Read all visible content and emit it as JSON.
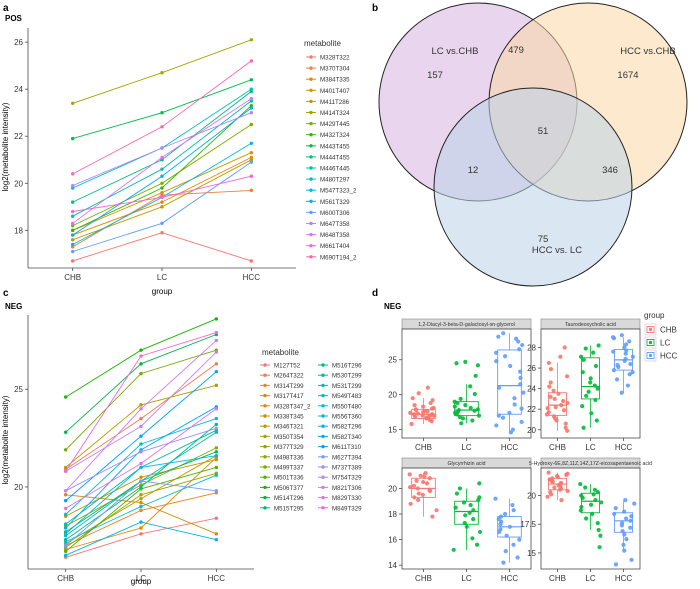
{
  "panels": {
    "a": {
      "label": "a",
      "title": "POS",
      "ylabel": "log2(metabolite intensity)",
      "xlabel": "group",
      "legend_title": "metabolite"
    },
    "b": {
      "label": "b"
    },
    "c": {
      "label": "c",
      "title": "NEG",
      "ylabel": "log2(metabolite intensity)",
      "xlabel": "group",
      "legend_title": "metabolite"
    },
    "d": {
      "label": "d",
      "title": "NEG",
      "legend_title": "group"
    }
  },
  "chart_data": [
    {
      "id": "pos_lines",
      "type": "line",
      "title": "POS",
      "xlabel": "group",
      "ylabel": "log2(metabolite intensity)",
      "categories": [
        "CHB",
        "LC",
        "HCC"
      ],
      "ylim": [
        16.4,
        26.6
      ],
      "yticks": [
        18,
        20,
        22,
        24,
        26
      ],
      "series": [
        {
          "name": "M328T322",
          "color": "#F8766D",
          "values": [
            16.7,
            17.9,
            16.7
          ]
        },
        {
          "name": "M370T304",
          "color": "#F07E41",
          "values": [
            17.3,
            19.5,
            19.7
          ]
        },
        {
          "name": "M384T335",
          "color": "#E48800",
          "values": [
            17.8,
            19.2,
            21.1
          ]
        },
        {
          "name": "M401T407",
          "color": "#D39200",
          "values": [
            18.0,
            19.6,
            21.3
          ]
        },
        {
          "name": "M411T286",
          "color": "#BE9C00",
          "values": [
            17.6,
            19.0,
            21.0
          ]
        },
        {
          "name": "M414T324",
          "color": "#A3A500",
          "values": [
            23.4,
            24.7,
            26.1
          ]
        },
        {
          "name": "M429T445",
          "color": "#7CAE00",
          "values": [
            18.2,
            20.0,
            22.5
          ]
        },
        {
          "name": "M432T324",
          "color": "#39B600",
          "values": [
            18.0,
            19.8,
            23.3
          ]
        },
        {
          "name": "M443T455",
          "color": "#00BB4E",
          "values": [
            21.9,
            23.0,
            24.4
          ]
        },
        {
          "name": "M444T455",
          "color": "#00BF7D",
          "values": [
            19.2,
            21.0,
            23.9
          ]
        },
        {
          "name": "M446T445",
          "color": "#00C1A3",
          "values": [
            18.6,
            20.6,
            23.5
          ]
        },
        {
          "name": "M480T297",
          "color": "#00BFC4",
          "values": [
            19.8,
            21.5,
            24.0
          ]
        },
        {
          "name": "M547T323_2",
          "color": "#00B9E3",
          "values": [
            17.4,
            19.4,
            21.7
          ]
        },
        {
          "name": "M561T329",
          "color": "#00ADFA",
          "values": [
            17.8,
            20.3,
            23.2
          ]
        },
        {
          "name": "M600T306",
          "color": "#619CFF",
          "values": [
            17.1,
            18.3,
            20.9
          ]
        },
        {
          "name": "M647T358",
          "color": "#AE87FF",
          "values": [
            19.9,
            21.5,
            23.0
          ]
        },
        {
          "name": "M648T358",
          "color": "#DB72FB",
          "values": [
            18.3,
            21.1,
            23.6
          ]
        },
        {
          "name": "M661T404",
          "color": "#F564E3",
          "values": [
            18.8,
            19.4,
            20.3
          ]
        },
        {
          "name": "M690T194_2",
          "color": "#FF64B0",
          "values": [
            20.4,
            22.4,
            25.2
          ]
        }
      ]
    },
    {
      "id": "venn",
      "type": "venn",
      "sets": [
        {
          "label": "LC vs.CHB",
          "color": "#d7b5e0"
        },
        {
          "label": "HCC vs.CHB",
          "color": "#fbd9a6"
        },
        {
          "label": "HCC  vs. LC",
          "color": "#bcd3ea"
        }
      ],
      "regions": {
        "lc_only": 157,
        "hcc_chb_only": 1674,
        "hcc_lc_only": 75,
        "lc_and_hcc_chb": 479,
        "lc_and_hcc_lc": 12,
        "hcc_chb_and_hcc_lc": 346,
        "all_three": 51
      }
    },
    {
      "id": "neg_lines",
      "type": "line",
      "title": "NEG",
      "xlabel": "group",
      "ylabel": "log2(metabolite intensity)",
      "categories": [
        "CHB",
        "LC",
        "HCC"
      ],
      "ylim": [
        15.8,
        28.8
      ],
      "yticks": [
        20,
        25
      ],
      "series": [
        {
          "name": "M127T52",
          "color": "#F8766D",
          "values": [
            16.4,
            17.6,
            18.4
          ]
        },
        {
          "name": "M264T322",
          "color": "#F27B4C",
          "values": [
            20.9,
            23.5,
            26.3
          ]
        },
        {
          "name": "M314T299",
          "color": "#EB8125",
          "values": [
            17.0,
            18.8,
            19.7
          ]
        },
        {
          "name": "M317T417",
          "color": "#E28700",
          "values": [
            16.8,
            17.9,
            21.5
          ]
        },
        {
          "name": "M328T347_2",
          "color": "#D78D00",
          "values": [
            19.6,
            19.2,
            17.6
          ]
        },
        {
          "name": "M338T345",
          "color": "#CA9300",
          "values": [
            18.5,
            20.5,
            21.4
          ]
        },
        {
          "name": "M346T321",
          "color": "#BD9900",
          "values": [
            17.1,
            19.4,
            21.6
          ]
        },
        {
          "name": "M350T354",
          "color": "#AE9E00",
          "values": [
            21.0,
            24.2,
            25.2
          ]
        },
        {
          "name": "M377T329",
          "color": "#9DA300",
          "values": [
            16.9,
            19.6,
            20.7
          ]
        },
        {
          "name": "M498T336",
          "color": "#8AA800",
          "values": [
            18.0,
            20.1,
            22.0
          ]
        },
        {
          "name": "M499T337",
          "color": "#72AC00",
          "values": [
            21.9,
            25.8,
            27.0
          ]
        },
        {
          "name": "M501T336",
          "color": "#52B000",
          "values": [
            16.7,
            19.9,
            21.0
          ]
        },
        {
          "name": "M506T377",
          "color": "#1BB300",
          "values": [
            24.6,
            27.0,
            28.6
          ]
        },
        {
          "name": "M514T296",
          "color": "#00B643",
          "values": [
            22.8,
            26.3,
            27.8
          ]
        },
        {
          "name": "M515T295",
          "color": "#00B869",
          "values": [
            17.7,
            20.3,
            21.8
          ]
        },
        {
          "name": "M516T296",
          "color": "#00BB86",
          "values": [
            17.3,
            20.0,
            23.2
          ]
        },
        {
          "name": "M530T299",
          "color": "#00BC9F",
          "values": [
            18.1,
            21.0,
            22.9
          ]
        },
        {
          "name": "M531T299",
          "color": "#00BEB5",
          "values": [
            17.5,
            20.3,
            22.8
          ]
        },
        {
          "name": "M549T483",
          "color": "#00BFC4",
          "values": [
            17.2,
            19.0,
            20.6
          ]
        },
        {
          "name": "M550T480",
          "color": "#00BCD8",
          "values": [
            18.6,
            22.2,
            23.5
          ]
        },
        {
          "name": "M556T360",
          "color": "#00B8E7",
          "values": [
            17.6,
            21.0,
            21.6
          ]
        },
        {
          "name": "M582T296",
          "color": "#00B2F3",
          "values": [
            16.5,
            18.2,
            17.3
          ]
        },
        {
          "name": "M582T340",
          "color": "#00ABFD",
          "values": [
            17.9,
            21.9,
            24.1
          ]
        },
        {
          "name": "M611T310",
          "color": "#00A2FF",
          "values": [
            19.3,
            22.6,
            25.9
          ]
        },
        {
          "name": "M627T394",
          "color": "#7897FF",
          "values": [
            17.0,
            20.3,
            19.8
          ]
        },
        {
          "name": "M737T389",
          "color": "#9C8DFF",
          "values": [
            19.8,
            21.8,
            23.0
          ]
        },
        {
          "name": "M754T329",
          "color": "#B983FF",
          "values": [
            20.8,
            23.1,
            26.9
          ]
        },
        {
          "name": "M821T306",
          "color": "#D179FA",
          "values": [
            19.8,
            24.0,
            27.5
          ]
        },
        {
          "name": "M829T330",
          "color": "#E46FEE",
          "values": [
            18.9,
            21.2,
            24.0
          ]
        },
        {
          "name": "M849T329",
          "color": "#F366DF",
          "values": [
            20.8,
            26.7,
            27.9
          ]
        }
      ]
    },
    {
      "id": "neg_box",
      "type": "box",
      "categories": [
        "CHB",
        "LC",
        "HCC"
      ],
      "colors": [
        "#F8766D",
        "#00BA38",
        "#619CFF"
      ],
      "facets": [
        {
          "title": "1,2-Diacyl-3-beta-D-galactosyl-sn-glycerol",
          "ylim": [
            13.8,
            29.4
          ],
          "yticks": [
            15,
            20,
            25
          ],
          "boxes": [
            {
              "q1": 16.6,
              "median": 17.2,
              "q3": 17.9,
              "lo": 15.8,
              "hi": 19.5
            },
            {
              "q1": 17.0,
              "median": 17.8,
              "q3": 19.0,
              "lo": 15.9,
              "hi": 21.5
            },
            {
              "q1": 17.2,
              "median": 21.3,
              "q3": 26.4,
              "lo": 14.6,
              "hi": 28.8
            }
          ],
          "points": [
            [
              15.8,
              16.2,
              16.4,
              16.6,
              16.7,
              16.8,
              16.9,
              17.0,
              17.0,
              17.1,
              17.2,
              17.2,
              17.3,
              17.4,
              17.5,
              17.6,
              17.7,
              17.8,
              17.9,
              18.0,
              18.1,
              18.3,
              18.5,
              18.8,
              19.2,
              19.5,
              20.2,
              21.0
            ],
            [
              15.9,
              16.3,
              16.6,
              16.8,
              17.0,
              17.2,
              17.4,
              17.6,
              17.7,
              17.8,
              17.9,
              18.1,
              18.3,
              18.5,
              18.8,
              19.0,
              19.4,
              20.1,
              21.2,
              22.7,
              24.2,
              24.5,
              24.7
            ],
            [
              14.6,
              15.0,
              15.6,
              16.1,
              16.7,
              17.0,
              17.4,
              18.0,
              18.6,
              19.5,
              20.3,
              21.0,
              21.5,
              22.4,
              23.3,
              24.1,
              24.8,
              25.5,
              26.0,
              26.5,
              27.1,
              27.6,
              28.0,
              28.3,
              28.8
            ]
          ]
        },
        {
          "title": "Taurodeoxycholic acid",
          "ylim": [
            19.2,
            29.8
          ],
          "yticks": [
            20,
            22,
            24,
            26,
            28
          ],
          "boxes": [
            {
              "q1": 21.4,
              "median": 22.4,
              "q3": 23.6,
              "lo": 19.9,
              "hi": 26.5
            },
            {
              "q1": 23.0,
              "median": 24.2,
              "q3": 27.0,
              "lo": 20.2,
              "hi": 28.2
            },
            {
              "q1": 25.8,
              "median": 26.8,
              "q3": 27.8,
              "lo": 23.6,
              "hi": 29.0
            }
          ],
          "points": [
            [
              19.9,
              20.2,
              20.6,
              20.9,
              21.1,
              21.3,
              21.5,
              21.7,
              21.9,
              22.1,
              22.2,
              22.4,
              22.6,
              22.8,
              23.0,
              23.2,
              23.5,
              23.8,
              24.2,
              24.6,
              25.2,
              25.9,
              26.5,
              27.1,
              28.0
            ],
            [
              20.2,
              20.9,
              21.6,
              22.3,
              22.9,
              23.3,
              23.7,
              24.0,
              24.3,
              24.6,
              25.0,
              25.6,
              26.2,
              26.8,
              27.1,
              27.5,
              27.9,
              28.2
            ],
            [
              23.6,
              24.3,
              24.9,
              25.4,
              25.8,
              26.1,
              26.4,
              26.7,
              26.9,
              27.1,
              27.4,
              27.7,
              28.0,
              28.3,
              28.6,
              28.9,
              29.0,
              29.2,
              25.6,
              26.3,
              27.6
            ]
          ]
        },
        {
          "title": "Glycyrrhizin acid",
          "ylim": [
            13.7,
            21.6
          ],
          "yticks": [
            14,
            16,
            18,
            20
          ],
          "boxes": [
            {
              "q1": 19.3,
              "median": 20.0,
              "q3": 20.8,
              "lo": 17.8,
              "hi": 21.2
            },
            {
              "q1": 17.2,
              "median": 18.2,
              "q3": 19.0,
              "lo": 15.2,
              "hi": 20.0
            },
            {
              "q1": 16.2,
              "median": 17.0,
              "q3": 17.8,
              "lo": 14.2,
              "hi": 19.2
            }
          ],
          "points": [
            [
              17.8,
              18.3,
              18.8,
              19.1,
              19.3,
              19.5,
              19.6,
              19.8,
              19.9,
              20.0,
              20.1,
              20.2,
              20.4,
              20.5,
              20.6,
              20.8,
              20.9,
              21.0,
              21.1,
              21.2
            ],
            [
              15.2,
              15.6,
              16.1,
              16.6,
              17.0,
              17.3,
              17.6,
              17.9,
              18.1,
              18.3,
              18.5,
              18.7,
              18.9,
              19.1,
              19.3,
              19.6,
              20.0,
              20.4
            ],
            [
              14.2,
              14.6,
              15.1,
              15.6,
              16.0,
              16.3,
              16.6,
              16.8,
              17.0,
              17.2,
              17.4,
              17.6,
              17.8,
              18.0,
              18.3,
              18.7,
              19.2
            ]
          ]
        },
        {
          "title": "5-Hydroxy-6E,8Z,11Z,14Z,17Z-eicosapentaenoic acid",
          "ylim": [
            13.6,
            22.4
          ],
          "yticks": [
            15.0,
            17.5,
            20.0
          ],
          "boxes": [
            {
              "q1": 20.5,
              "median": 21.0,
              "q3": 21.5,
              "lo": 19.6,
              "hi": 22.0
            },
            {
              "q1": 18.5,
              "median": 19.5,
              "q3": 20.2,
              "lo": 17.0,
              "hi": 21.0
            },
            {
              "q1": 16.8,
              "median": 17.8,
              "q3": 18.5,
              "lo": 15.2,
              "hi": 19.5
            }
          ],
          "points": [
            [
              19.6,
              19.9,
              20.1,
              20.3,
              20.4,
              20.5,
              20.6,
              20.7,
              20.8,
              20.9,
              21.0,
              21.1,
              21.2,
              21.3,
              21.4,
              21.5,
              21.6,
              21.7,
              21.8,
              21.9,
              22.0
            ],
            [
              15.5,
              16.5,
              17.0,
              17.6,
              18.0,
              18.4,
              18.7,
              19.0,
              19.2,
              19.4,
              19.6,
              19.8,
              20.0,
              20.1,
              20.3,
              20.5,
              20.7,
              21.0
            ],
            [
              14.0,
              14.4,
              15.2,
              15.7,
              16.2,
              16.6,
              16.9,
              17.2,
              17.4,
              17.6,
              17.8,
              18.0,
              18.2,
              18.4,
              18.6,
              18.9,
              19.3,
              19.6
            ]
          ]
        }
      ],
      "legend": [
        {
          "label": "CHB",
          "color": "#F8766D"
        },
        {
          "label": "LC",
          "color": "#00BA38"
        },
        {
          "label": "HCC",
          "color": "#619CFF"
        }
      ]
    }
  ]
}
